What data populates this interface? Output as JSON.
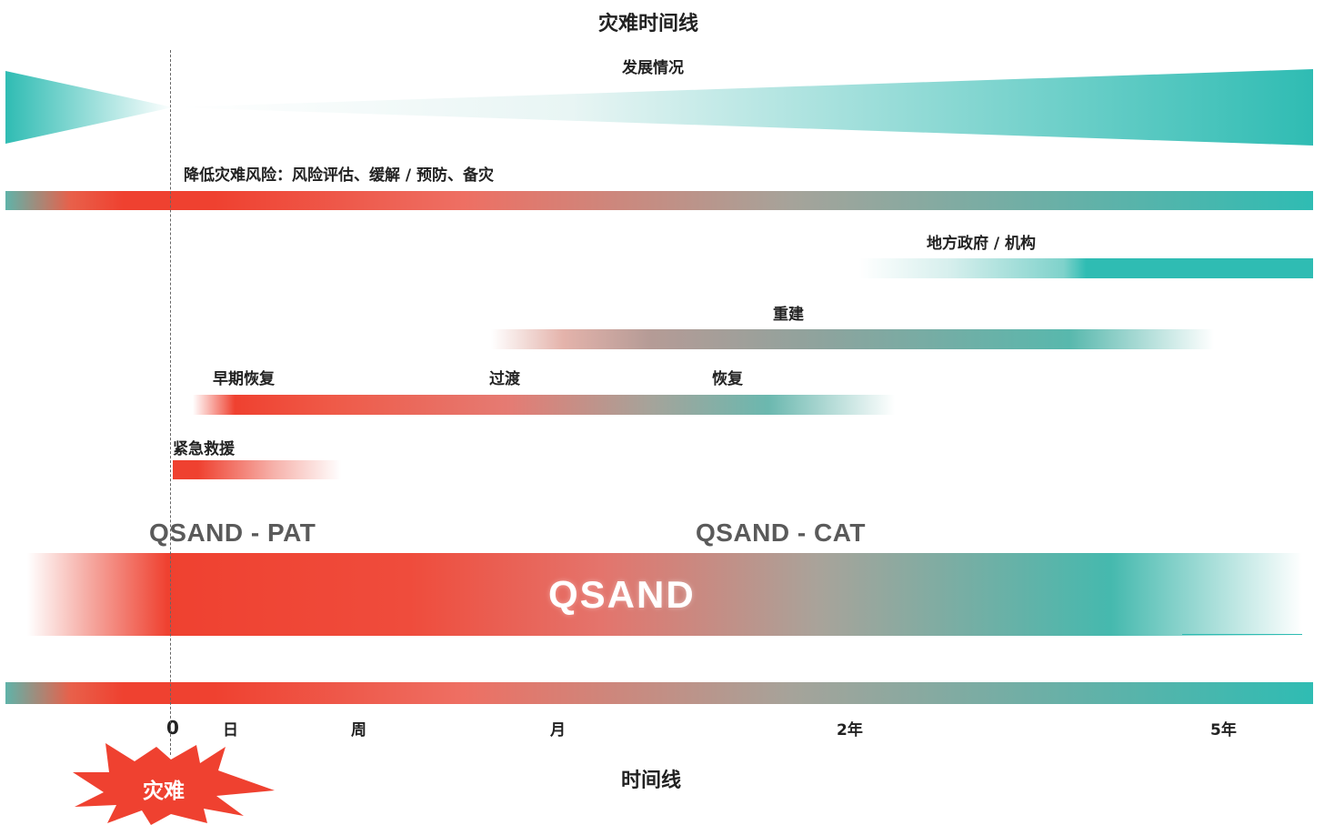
{
  "title": "灾难时间线",
  "development_label": "发展情况",
  "risk_reduction_label": "降低灾难风险：风险评估、缓解 / 预防、备灾",
  "local_gov_label": "地方政府 / 机构",
  "reconstruction_label": "重建",
  "early_recovery_label": "早期恢复",
  "transition_label": "过渡",
  "recovery_label": "恢复",
  "emergency_label": "紧急救援",
  "qsand_pat_label": "QSAND - PAT",
  "qsand_cat_label": "QSAND - CAT",
  "qsand_label": "QSAND",
  "timeline": {
    "ticks": [
      "0",
      "日",
      "周",
      "月",
      "2年",
      "5年"
    ],
    "axis_label": "时间线"
  },
  "disaster_label": "灾难",
  "colors": {
    "red": "#ef4130",
    "teal": "#2fbcb3",
    "gray_mid": "#a3a39a"
  }
}
